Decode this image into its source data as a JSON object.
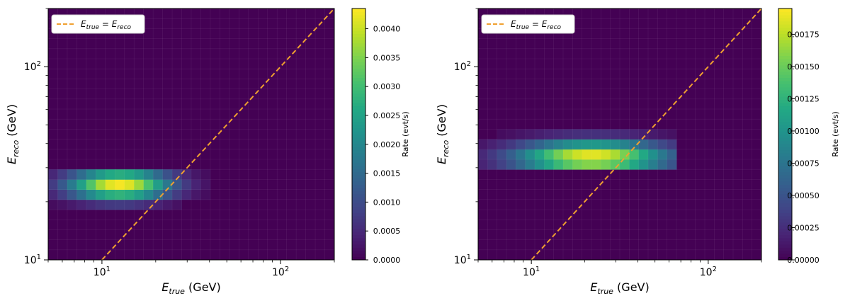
{
  "chart_data": [
    {
      "type": "heatmap",
      "xlabel": "E_true (GeV)",
      "ylabel": "E_reco (GeV)",
      "xlabel_parts": {
        "main": "E",
        "sub": "true",
        "unit": "(GeV)"
      },
      "ylabel_parts": {
        "main": "E",
        "sub": "reco",
        "unit": "(GeV)"
      },
      "x_scale": "log",
      "y_scale": "log",
      "xlim": [
        5,
        200
      ],
      "ylim": [
        10,
        200
      ],
      "x_tick_labels": [
        {
          "value": 10,
          "base": "10",
          "exp": "1"
        },
        {
          "value": 100,
          "base": "10",
          "exp": "2"
        }
      ],
      "y_tick_labels": [
        {
          "value": 10,
          "base": "10",
          "exp": "1"
        },
        {
          "value": 100,
          "base": "10",
          "exp": "2"
        }
      ],
      "colormap": "viridis",
      "colorbar": {
        "label": "Rate (evt/s)",
        "min": 0.0,
        "max": 0.00435,
        "ticks": [
          0.0,
          0.0005,
          0.001,
          0.0015,
          0.002,
          0.0025,
          0.003,
          0.0035,
          0.004
        ],
        "tick_labels": [
          "0.0000",
          "0.0005",
          "0.0010",
          "0.0015",
          "0.0020",
          "0.0025",
          "0.0030",
          "0.0035",
          "0.0040"
        ]
      },
      "blob": {
        "x_center": 12.5,
        "y_center": 24.5,
        "x_width_dex": 0.2,
        "y_width_dex": 0.055,
        "peak": 0.0043,
        "x_range": [
          5,
          40
        ],
        "y_range": [
          16,
          31
        ]
      },
      "legend": {
        "label": "E_true = E_reco",
        "lhs": "E",
        "lhs_sub": "true",
        "rhs": "E",
        "rhs_sub": "reco",
        "position": "upper left",
        "line_color": "#f0a030"
      },
      "diagonal": {
        "x": [
          10,
          200
        ],
        "y": [
          10,
          200
        ]
      }
    },
    {
      "type": "heatmap",
      "xlabel": "E_true (GeV)",
      "ylabel": "E_reco (GeV)",
      "xlabel_parts": {
        "main": "E",
        "sub": "true",
        "unit": "(GeV)"
      },
      "ylabel_parts": {
        "main": "E",
        "sub": "reco",
        "unit": "(GeV)"
      },
      "x_scale": "log",
      "y_scale": "log",
      "xlim": [
        5,
        200
      ],
      "ylim": [
        10,
        200
      ],
      "x_tick_labels": [
        {
          "value": 10,
          "base": "10",
          "exp": "1"
        },
        {
          "value": 100,
          "base": "10",
          "exp": "2"
        }
      ],
      "y_tick_labels": [
        {
          "value": 10,
          "base": "10",
          "exp": "1"
        },
        {
          "value": 100,
          "base": "10",
          "exp": "2"
        }
      ],
      "colormap": "viridis",
      "colorbar": {
        "label": "Rate (evt/s)",
        "min": 0.0,
        "max": 0.00195,
        "ticks": [
          0.0,
          0.00025,
          0.0005,
          0.00075,
          0.001,
          0.00125,
          0.0015,
          0.00175
        ],
        "tick_labels": [
          "0.00000",
          "0.00025",
          "0.00050",
          "0.00075",
          "0.00100",
          "0.00125",
          "0.00150",
          "0.00175"
        ]
      },
      "blob": {
        "x_center": 22.0,
        "y_center": 34.0,
        "x_width_dex": 0.3,
        "y_width_dex": 0.06,
        "peak": 0.00193,
        "x_range": [
          5,
          65
        ],
        "y_range": [
          31,
          66
        ]
      },
      "legend": {
        "label": "E_true = E_reco",
        "lhs": "E",
        "lhs_sub": "true",
        "rhs": "E",
        "rhs_sub": "reco",
        "position": "upper left",
        "line_color": "#f0a030"
      },
      "diagonal": {
        "x": [
          10,
          200
        ],
        "y": [
          10,
          200
        ]
      }
    }
  ]
}
